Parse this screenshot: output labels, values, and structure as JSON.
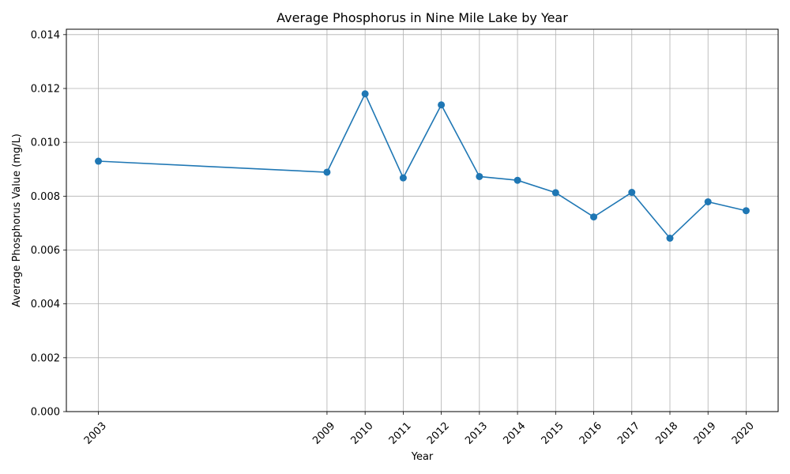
{
  "chart_data": {
    "type": "line",
    "title": "Average Phosphorus in Nine Mile Lake by Year",
    "xlabel": "Year",
    "ylabel": "Average Phosphorus Value (mg/L)",
    "x": [
      2003,
      2009,
      2010,
      2011,
      2012,
      2013,
      2014,
      2015,
      2016,
      2017,
      2018,
      2019,
      2020
    ],
    "series": [
      {
        "values": [
          0.0093,
          0.00889,
          0.0118,
          0.00868,
          0.01139,
          0.00873,
          0.00859,
          0.00813,
          0.00723,
          0.00814,
          0.00644,
          0.00779,
          0.00746
        ],
        "color": "#1f77b4",
        "marker": "circle"
      }
    ],
    "x_tick_labels": [
      "2003",
      "2009",
      "2010",
      "2011",
      "2012",
      "2013",
      "2014",
      "2015",
      "2016",
      "2017",
      "2018",
      "2019",
      "2020"
    ],
    "y_ticks": [
      0.0,
      0.002,
      0.004,
      0.006,
      0.008,
      0.01,
      0.012,
      0.014
    ],
    "y_tick_labels": [
      "0.000",
      "0.002",
      "0.004",
      "0.006",
      "0.008",
      "0.010",
      "0.012",
      "0.014"
    ],
    "xlim": [
      2003,
      2020
    ],
    "ylim": [
      0,
      0.0142
    ],
    "grid": true,
    "legend": "none"
  }
}
